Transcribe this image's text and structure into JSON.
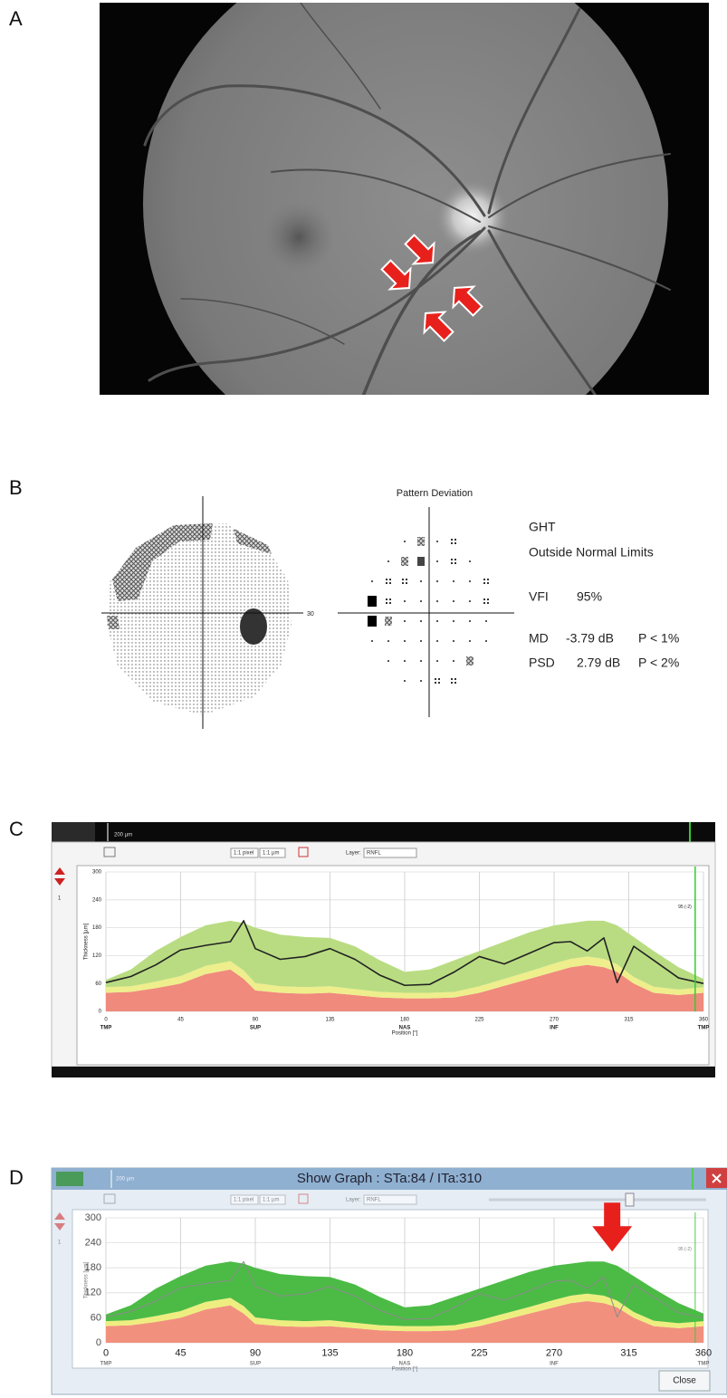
{
  "panel_labels": [
    "A",
    "B",
    "C",
    "D"
  ],
  "visual_field": {
    "axis_label": "30",
    "pd_title": "Pattern Deviation",
    "ght_label": "GHT",
    "ght_value": "Outside Normal Limits",
    "vfi_label": "VFI",
    "vfi_value": "95%",
    "md_label": "MD",
    "md_value": "-3.79 dB",
    "md_p": "P < 1%",
    "psd_label": "PSD",
    "psd_value": "2.79 dB",
    "psd_p": "P < 2%"
  },
  "chart_data": [
    {
      "type": "area",
      "scale_bar": "200 µm",
      "side_index": "1",
      "toolbar": {
        "zoom": "1:1 pixel",
        "scale": "1:1 µm",
        "layer_label": "Layer:",
        "layer": "RNFL"
      },
      "ylabel": "Thickness [µm]",
      "xlabel": "Position [°]",
      "x": [
        0,
        15,
        30,
        45,
        60,
        75,
        83,
        90,
        105,
        120,
        135,
        150,
        165,
        180,
        195,
        210,
        225,
        240,
        255,
        270,
        280,
        290,
        300,
        308,
        318,
        330,
        345,
        360
      ],
      "series": [
        {
          "kind": "area",
          "color": "#f08a7c",
          "values": [
            40,
            42,
            50,
            60,
            80,
            90,
            70,
            45,
            40,
            38,
            40,
            35,
            30,
            28,
            28,
            30,
            40,
            55,
            70,
            85,
            95,
            100,
            95,
            85,
            60,
            40,
            35,
            40
          ]
        },
        {
          "kind": "area",
          "color": "#eeee8c",
          "values": [
            12,
            12,
            14,
            16,
            18,
            18,
            18,
            16,
            14,
            14,
            14,
            13,
            12,
            12,
            12,
            12,
            14,
            15,
            16,
            18,
            18,
            18,
            18,
            16,
            14,
            13,
            12,
            12
          ]
        },
        {
          "kind": "area",
          "color": "#b9dc82",
          "values": [
            16,
            36,
            66,
            84,
            87,
            87,
            102,
            119,
            111,
            108,
            104,
            92,
            68,
            45,
            50,
            68,
            76,
            80,
            84,
            82,
            77,
            77,
            82,
            84,
            86,
            77,
            48,
            18
          ]
        },
        {
          "kind": "line",
          "color": "#222222",
          "values": [
            62,
            75,
            100,
            132,
            142,
            150,
            195,
            135,
            112,
            118,
            135,
            112,
            78,
            56,
            58,
            85,
            118,
            102,
            125,
            148,
            150,
            130,
            158,
            62,
            140,
            110,
            72,
            60
          ]
        }
      ],
      "xlim": [
        0,
        360
      ],
      "xticks": [
        0,
        45,
        90,
        135,
        180,
        225,
        270,
        315,
        360
      ],
      "ylim": [
        0,
        300
      ],
      "yticks": [
        0,
        60,
        120,
        180,
        240,
        300
      ],
      "sector_labels": [
        "TMP",
        "SUP",
        "NAS",
        "INF",
        "TMP"
      ],
      "grid": true,
      "cursor": 355,
      "annotation": "95 (-2)"
    },
    {
      "type": "area",
      "title": "Show Graph : STa:84 / ITa:310",
      "close": "Close",
      "scale_bar": "200 µm",
      "side_index": "1",
      "toolbar": {
        "zoom": "1:1 pixel",
        "scale": "1:1 µm",
        "layer_label": "Layer:",
        "layer": "RNFL"
      },
      "ylabel": "Thickness [µm]",
      "xlabel": "Position [°]",
      "x": [
        0,
        15,
        30,
        45,
        60,
        75,
        83,
        90,
        105,
        120,
        135,
        150,
        165,
        180,
        195,
        210,
        225,
        240,
        255,
        270,
        280,
        290,
        300,
        308,
        318,
        330,
        345,
        360
      ],
      "series": [
        {
          "kind": "area",
          "color": "#f2907e",
          "values": [
            40,
            42,
            50,
            60,
            80,
            90,
            70,
            45,
            40,
            38,
            40,
            35,
            30,
            28,
            28,
            30,
            40,
            55,
            70,
            85,
            95,
            100,
            95,
            85,
            60,
            40,
            35,
            40
          ]
        },
        {
          "kind": "area",
          "color": "#eeee80",
          "values": [
            12,
            12,
            14,
            16,
            18,
            18,
            18,
            16,
            14,
            14,
            14,
            13,
            12,
            12,
            12,
            12,
            14,
            15,
            16,
            18,
            18,
            18,
            18,
            16,
            14,
            13,
            12,
            12
          ]
        },
        {
          "kind": "area",
          "color": "#4cbb46",
          "values": [
            16,
            36,
            66,
            84,
            87,
            87,
            102,
            119,
            111,
            108,
            104,
            92,
            68,
            45,
            50,
            68,
            76,
            80,
            84,
            82,
            77,
            77,
            82,
            84,
            86,
            77,
            48,
            18
          ]
        },
        {
          "kind": "line",
          "color": "#8a8a8a",
          "values": [
            62,
            75,
            100,
            132,
            142,
            150,
            195,
            135,
            112,
            118,
            135,
            112,
            78,
            56,
            58,
            85,
            118,
            102,
            125,
            148,
            150,
            130,
            158,
            62,
            140,
            110,
            72,
            60
          ]
        }
      ],
      "xlim": [
        0,
        360
      ],
      "xticks": [
        0,
        45,
        90,
        135,
        180,
        225,
        270,
        315,
        360
      ],
      "ylim": [
        0,
        300
      ],
      "yticks": [
        0,
        60,
        120,
        180,
        240,
        300
      ],
      "sector_labels": [
        "TMP",
        "SUP",
        "NAS",
        "INF",
        "TMP"
      ],
      "grid": true,
      "cursor": 355,
      "annotation": "95 (-2)"
    }
  ]
}
